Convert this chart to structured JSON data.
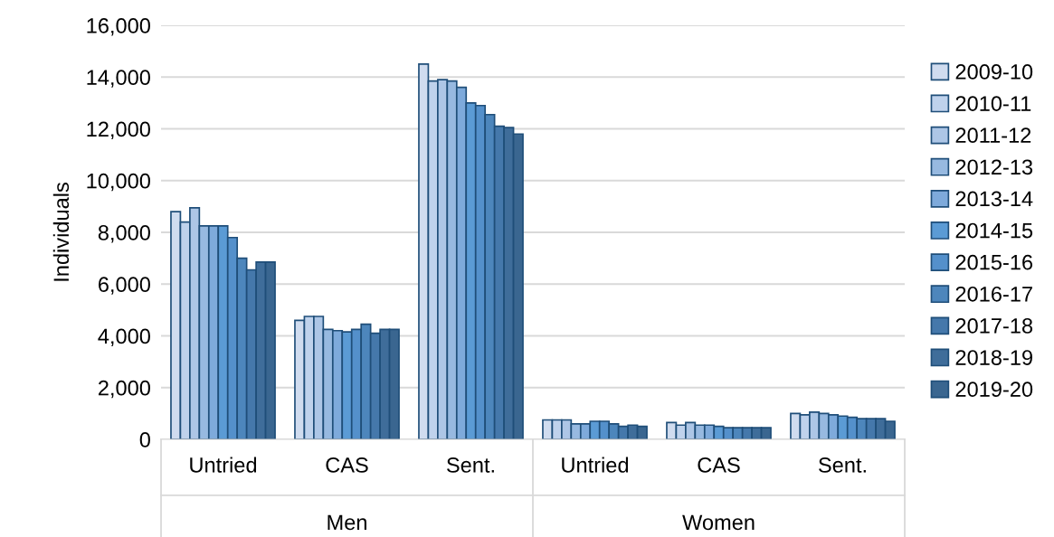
{
  "chart_data": {
    "type": "bar",
    "ylabel": "Individuals",
    "categories": [
      "Untried",
      "CAS",
      "Sent.",
      "Untried",
      "CAS",
      "Sent."
    ],
    "annotations": [
      "Men",
      "Women"
    ],
    "series": [
      {
        "name": "2009-10",
        "color": "#d0dcef",
        "values": [
          8800,
          4600,
          14500,
          750,
          650,
          1000
        ]
      },
      {
        "name": "2010-11",
        "color": "#bfd2ec",
        "values": [
          8400,
          4750,
          13850,
          750,
          550,
          950
        ]
      },
      {
        "name": "2011-12",
        "color": "#adc6e6",
        "values": [
          8950,
          4750,
          13900,
          750,
          650,
          1050
        ]
      },
      {
        "name": "2012-13",
        "color": "#97b9e0",
        "values": [
          8250,
          4250,
          13850,
          600,
          550,
          1000
        ]
      },
      {
        "name": "2013-14",
        "color": "#7eaadb",
        "values": [
          8250,
          4200,
          13600,
          600,
          550,
          950
        ]
      },
      {
        "name": "2014-15",
        "color": "#5b9bd5",
        "values": [
          8250,
          4150,
          13000,
          700,
          500,
          900
        ]
      },
      {
        "name": "2015-16",
        "color": "#5490cb",
        "values": [
          7800,
          4250,
          12900,
          700,
          450,
          850
        ]
      },
      {
        "name": "2016-17",
        "color": "#4d86bc",
        "values": [
          7000,
          4450,
          12550,
          600,
          450,
          800
        ]
      },
      {
        "name": "2017-18",
        "color": "#4578ab",
        "values": [
          6550,
          4100,
          12100,
          500,
          450,
          800
        ]
      },
      {
        "name": "2018-19",
        "color": "#3f6d9a",
        "values": [
          6850,
          4250,
          12050,
          550,
          450,
          800
        ]
      },
      {
        "name": "2019-20",
        "color": "#3a6690",
        "values": [
          6850,
          4250,
          11800,
          500,
          450,
          700
        ]
      }
    ],
    "ylim": [
      0,
      16000
    ],
    "yticks": [
      {
        "value": 0,
        "label": "0"
      },
      {
        "value": 2000,
        "label": "2,000"
      },
      {
        "value": 4000,
        "label": "4,000"
      },
      {
        "value": 6000,
        "label": "6,000"
      },
      {
        "value": 8000,
        "label": "8,000"
      },
      {
        "value": 10000,
        "label": "10,000"
      },
      {
        "value": 12000,
        "label": "12,000"
      },
      {
        "value": 14000,
        "label": "14,000"
      },
      {
        "value": 16000,
        "label": "16,000"
      }
    ],
    "grid": "y",
    "legend": "right"
  }
}
